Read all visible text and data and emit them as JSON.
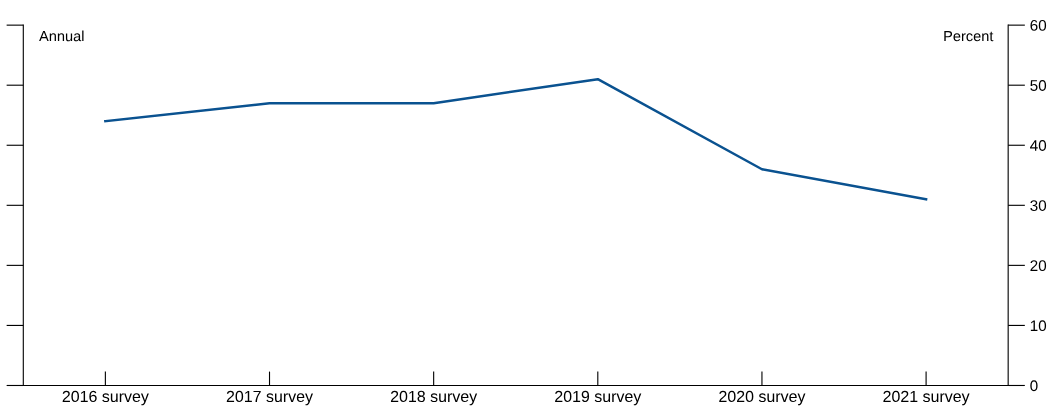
{
  "chart_data": {
    "type": "line",
    "categories": [
      "2016 survey",
      "2017 survey",
      "2018 survey",
      "2019 survey",
      "2020 survey",
      "2021 survey"
    ],
    "series": [
      {
        "color": "#0a5290",
        "values": [
          44,
          47,
          47,
          51,
          36,
          31
        ]
      }
    ],
    "ylim": [
      0,
      60
    ],
    "yticks": [
      0,
      10,
      20,
      30,
      40,
      50,
      60
    ],
    "annotations": [
      "Annual",
      "Percent"
    ],
    "grid": false,
    "legend": false,
    "marker": "none",
    "line_style": "solid"
  }
}
